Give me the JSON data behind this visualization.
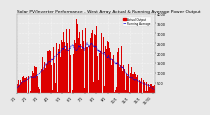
{
  "title": "Solar PV/Inverter Performance - West Array Actual & Running Average Power Output",
  "background_color": "#e8e8e8",
  "plot_bg_color": "#e8e8e8",
  "bar_color": "#dd0000",
  "avg_line_color": "#0000dd",
  "n_bars": 365,
  "peak_value": 3600,
  "ylim": [
    0,
    4000
  ],
  "yticks": [
    500,
    1000,
    1500,
    2000,
    2500,
    3000,
    3500,
    4000
  ],
  "title_fontsize": 3.2,
  "tick_fontsize": 2.5,
  "legend_actual": "Actual Output",
  "legend_avg": "Running Average"
}
